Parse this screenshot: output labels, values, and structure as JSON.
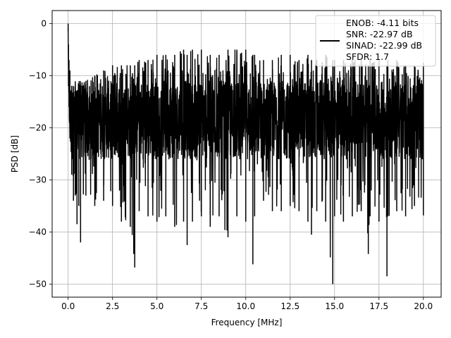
{
  "chart_data": {
    "type": "line",
    "title": "",
    "xlabel": "Frequency [MHz]",
    "ylabel": "PSD [dB]",
    "xlim": [
      -0.9,
      21.0
    ],
    "ylim": [
      -52.5,
      2.5
    ],
    "xticks": [
      0.0,
      2.5,
      5.0,
      7.5,
      10.0,
      12.5,
      15.0,
      17.5,
      20.0
    ],
    "xtick_labels": [
      "0.0",
      "2.5",
      "5.0",
      "7.5",
      "10.0",
      "12.5",
      "15.0",
      "17.5",
      "20.0"
    ],
    "yticks": [
      0,
      -10,
      -20,
      -30,
      -40,
      -50
    ],
    "ytick_labels": [
      "0",
      "−10",
      "−20",
      "−30",
      "−40",
      "−50"
    ],
    "grid": true,
    "legend_position": "top-right",
    "legend": {
      "lines": [
        "ENOB: -4.11 bits",
        "SNR: -22.97 dB",
        "SINAD: -22.99 dB",
        "SFDR: 1.7"
      ]
    },
    "series": [
      {
        "color": "#000000",
        "x": [
          0.0,
          0.02,
          0.05,
          0.1,
          0.2,
          0.3,
          0.4,
          0.5,
          0.6,
          0.7,
          1.0,
          1.5,
          2.0,
          2.5,
          3.0,
          3.5,
          3.75,
          4.0,
          4.5,
          5.0,
          5.5,
          6.0,
          6.5,
          6.7,
          7.0,
          7.5,
          8.0,
          8.5,
          9.0,
          9.5,
          10.0,
          10.4,
          10.5,
          11.0,
          11.5,
          12.0,
          12.5,
          13.0,
          13.5,
          13.7,
          14.0,
          14.5,
          14.9,
          15.0,
          15.5,
          16.0,
          16.5,
          16.9,
          17.0,
          17.5,
          17.95,
          18.0,
          18.5,
          19.0,
          19.5,
          20.0
        ],
        "y_min": [
          -1.5,
          -12.0,
          -16.0,
          -22.0,
          -29.0,
          -34.0,
          -33.0,
          -38.5,
          -35.0,
          -42.0,
          -33.0,
          -35.0,
          -34.0,
          -35.0,
          -38.0,
          -39.0,
          -46.8,
          -36.0,
          -37.0,
          -38.0,
          -37.0,
          -39.0,
          -38.0,
          -42.5,
          -38.0,
          -37.0,
          -39.0,
          -37.0,
          -41.0,
          -37.0,
          -38.0,
          -46.2,
          -37.0,
          -34.0,
          -36.0,
          -36.0,
          -35.0,
          -36.0,
          -38.0,
          -40.5,
          -36.0,
          -38.0,
          -50.0,
          -37.0,
          -38.0,
          -37.0,
          -36.0,
          -44.2,
          -37.0,
          -38.0,
          -48.5,
          -37.0,
          -36.0,
          -37.0,
          -35.0,
          -36.8
        ],
        "y_max": [
          0.0,
          -4.0,
          -7.0,
          -9.0,
          -12.0,
          -12.0,
          -13.0,
          -13.0,
          -12.0,
          -12.0,
          -11.0,
          -10.0,
          -9.0,
          -8.0,
          -8.0,
          -8.0,
          -8.0,
          -7.0,
          -7.0,
          -6.0,
          -6.0,
          -6.0,
          -5.0,
          -6.0,
          -5.0,
          -5.0,
          -6.0,
          -6.0,
          -5.0,
          -5.0,
          -5.0,
          -6.0,
          -6.0,
          -7.0,
          -7.0,
          -6.0,
          -6.0,
          -7.0,
          -6.0,
          -7.0,
          -7.0,
          -6.0,
          -7.0,
          -7.0,
          -7.0,
          -7.0,
          -7.0,
          -8.0,
          -7.0,
          -7.0,
          -8.0,
          -7.0,
          -7.0,
          -8.0,
          -8.0,
          -7.5
        ]
      }
    ]
  }
}
